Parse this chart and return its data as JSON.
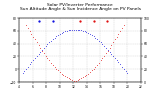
{
  "title": "Solar PV/Inverter Performance\nSun Altitude Angle & Sun Incidence Angle on PV Panels",
  "title_fontsize": 3.2,
  "background_color": "#ffffff",
  "grid_color": "#bbbbbb",
  "x_min": 4,
  "x_max": 22,
  "y_left_min": -20,
  "y_left_max": 80,
  "y_right_min": 0,
  "y_right_max": 100,
  "altitude_color": "#0000dd",
  "incidence_color": "#dd0000",
  "marker_size": 1.0,
  "n_points": 60,
  "sunrise": 5.0,
  "sunset": 19.5,
  "max_alt": 62,
  "panel_tilt": 30
}
